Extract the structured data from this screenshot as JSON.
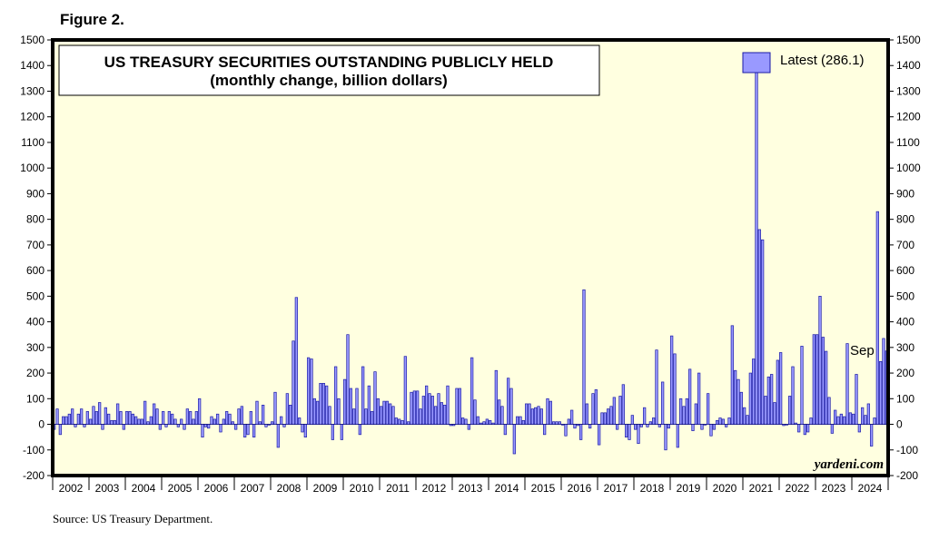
{
  "figure_label": "Figure 2.",
  "source": "Source: US Treasury Department.",
  "watermark": "yardeni.com",
  "colors": {
    "plot_bg": "#ffffe0",
    "bar_fill": "#9999ff",
    "bar_stroke": "#1a1aa6",
    "frame": "#000000"
  },
  "chart_data": {
    "type": "bar",
    "title": "US TREASURY SECURITIES OUTSTANDING PUBLICLY HELD",
    "subtitle": "(monthly change, billion dollars)",
    "legend": {
      "label": "Latest (286.1)",
      "position": "top-right"
    },
    "annotation": "Sep",
    "ylim": [
      -200,
      1500
    ],
    "y_ticks": [
      "1500",
      "1400",
      "1300",
      "1200",
      "1100",
      "1000",
      "900",
      "800",
      "700",
      "600",
      "500",
      "400",
      "300",
      "200",
      "100",
      "0",
      "-100",
      "-200"
    ],
    "x_start_year": 2002,
    "x_end_year": 2024,
    "x_tick_labels": [
      "2002",
      "2003",
      "2004",
      "2005",
      "2006",
      "2007",
      "2008",
      "2009",
      "2010",
      "2011",
      "2012",
      "2013",
      "2014",
      "2015",
      "2016",
      "2017",
      "2018",
      "2019",
      "2020",
      "2021",
      "2022",
      "2023",
      "2024"
    ],
    "start": "2002-01",
    "values": [
      -20,
      60,
      -40,
      30,
      30,
      40,
      60,
      -10,
      40,
      60,
      -10,
      50,
      20,
      70,
      50,
      85,
      -20,
      65,
      40,
      15,
      15,
      80,
      50,
      -20,
      50,
      50,
      40,
      30,
      20,
      20,
      90,
      10,
      30,
      80,
      60,
      -20,
      50,
      -10,
      50,
      40,
      20,
      -10,
      20,
      -20,
      60,
      50,
      20,
      50,
      100,
      -50,
      -10,
      -15,
      30,
      20,
      40,
      -30,
      20,
      50,
      40,
      10,
      -20,
      60,
      70,
      -50,
      -40,
      50,
      -50,
      90,
      10,
      75,
      -10,
      0,
      10,
      125,
      -90,
      30,
      -10,
      120,
      75,
      325,
      495,
      25,
      -30,
      -50,
      260,
      255,
      100,
      90,
      160,
      160,
      150,
      70,
      -60,
      225,
      100,
      -60,
      175,
      350,
      140,
      60,
      140,
      -40,
      225,
      60,
      150,
      50,
      205,
      100,
      70,
      90,
      90,
      80,
      70,
      25,
      20,
      15,
      265,
      10,
      125,
      130,
      130,
      60,
      110,
      150,
      120,
      110,
      70,
      120,
      85,
      75,
      150,
      -5,
      -5,
      140,
      140,
      25,
      20,
      -20,
      260,
      95,
      30,
      5,
      10,
      20,
      15,
      5,
      210,
      95,
      70,
      -40,
      180,
      140,
      -115,
      30,
      30,
      15,
      80,
      80,
      60,
      65,
      70,
      60,
      -40,
      100,
      90,
      10,
      10,
      10,
      0,
      -45,
      20,
      55,
      -15,
      -5,
      -60,
      525,
      80,
      -15,
      120,
      135,
      -80,
      45,
      45,
      60,
      70,
      105,
      -20,
      110,
      155,
      -50,
      -60,
      35,
      -20,
      -75,
      -10,
      65,
      -10,
      10,
      25,
      290,
      -10,
      165,
      -100,
      -15,
      345,
      275,
      -90,
      100,
      70,
      100,
      215,
      -25,
      80,
      200,
      -20,
      0,
      120,
      -45,
      -20,
      15,
      25,
      20,
      -10,
      25,
      385,
      210,
      175,
      125,
      65,
      35,
      200,
      255,
      1375,
      760,
      720,
      110,
      185,
      195,
      85,
      250,
      280,
      -5,
      0,
      110,
      225,
      5,
      -30,
      305,
      -40,
      -30,
      25,
      350,
      350,
      500,
      340,
      285,
      105,
      -35,
      55,
      30,
      40,
      30,
      315,
      45,
      40,
      195,
      -30,
      65,
      35,
      80,
      -85,
      25,
      830,
      245,
      335,
      286.1
    ]
  }
}
